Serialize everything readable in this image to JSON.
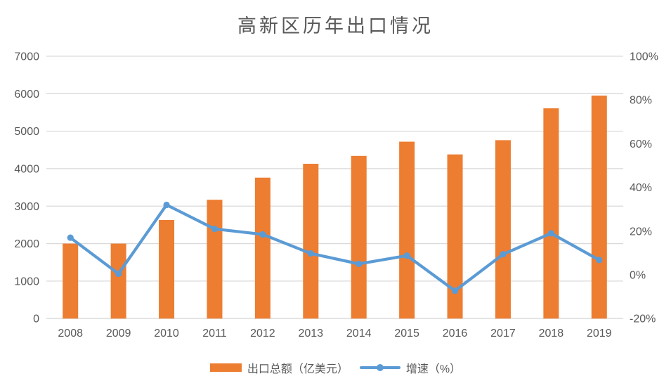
{
  "title": "高新区历年出口情况",
  "colors": {
    "bar": "#ED7D31",
    "line": "#5B9BD5",
    "grid": "#D9D9D9",
    "text": "#595959",
    "title_text": "#595959",
    "background": "#FFFFFF"
  },
  "legend": {
    "export_label": "出口总额（亿美元）",
    "growth_label": "增速（%）"
  },
  "chart_data": {
    "type": "combo-bar-line",
    "title": "高新区历年出口情况",
    "categories": [
      "2008",
      "2009",
      "2010",
      "2011",
      "2012",
      "2013",
      "2014",
      "2015",
      "2016",
      "2017",
      "2018",
      "2019"
    ],
    "series": [
      {
        "name": "出口总额（亿美元）",
        "type": "bar",
        "axis": "left",
        "color": "#ED7D31",
        "values": [
          2000,
          2000,
          2630,
          3170,
          3760,
          4130,
          4340,
          4720,
          4380,
          4760,
          5610,
          5950
        ]
      },
      {
        "name": "增速（%）",
        "type": "line",
        "axis": "right",
        "color": "#5B9BD5",
        "values": [
          17,
          0.5,
          32,
          21,
          18.5,
          9.8,
          5,
          8.8,
          -7.3,
          9.4,
          19,
          6.8
        ]
      }
    ],
    "left_axis": {
      "min": 0,
      "max": 7000,
      "step": 1000,
      "tick_labels": [
        "7000",
        "6000",
        "5000",
        "4000",
        "3000",
        "2000",
        "1000",
        "0"
      ]
    },
    "right_axis": {
      "min": -20,
      "max": 100,
      "step": 20,
      "tick_labels": [
        "100%",
        "80%",
        "60%",
        "40%",
        "20%",
        "0%",
        "-20%"
      ]
    },
    "grid": true,
    "legend_position": "bottom"
  }
}
